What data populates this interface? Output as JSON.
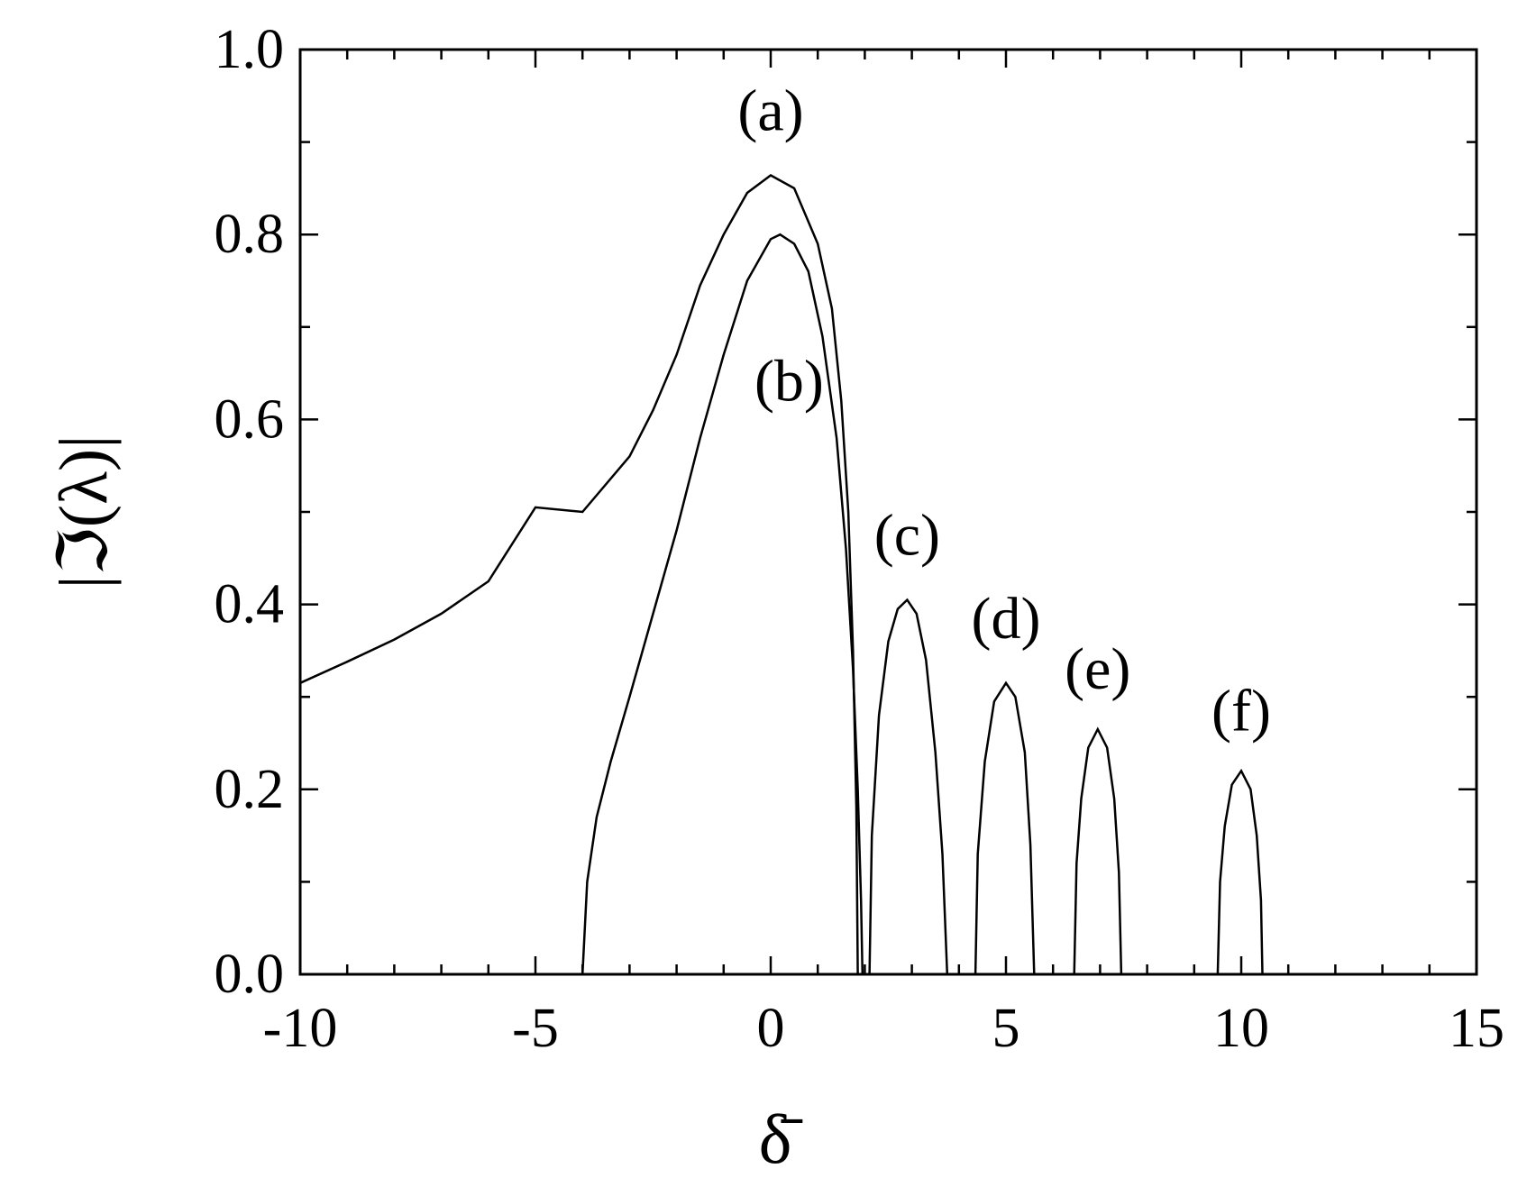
{
  "chart_data": {
    "type": "line",
    "xlabel": "δ̄",
    "ylabel": "|ℑ(λ)|",
    "xlim": [
      -10,
      15
    ],
    "ylim": [
      0,
      1
    ],
    "xticks": [
      -10,
      -5,
      0,
      5,
      10,
      15
    ],
    "yticks": [
      {
        "value": 0,
        "label": "0.0"
      },
      0.2,
      0.4,
      0.6,
      0.8,
      {
        "value": 1,
        "label": "1.0"
      }
    ],
    "series": [
      {
        "name": "(a)",
        "color": "#000000",
        "x": [
          -10,
          -9,
          -8,
          -7,
          -6,
          -5,
          -4,
          -3,
          -2.5,
          -2,
          -1.5,
          -1,
          -0.5,
          0,
          0.5,
          1,
          1.3,
          1.5,
          1.65,
          1.75,
          1.82,
          1.85
        ],
        "values": [
          0.315,
          0.338,
          0.362,
          0.39,
          0.425,
          0.505,
          0.5,
          0.56,
          0.61,
          0.67,
          0.745,
          0.8,
          0.845,
          0.864,
          0.85,
          0.79,
          0.72,
          0.62,
          0.5,
          0.35,
          0.18,
          0
        ]
      },
      {
        "name": "(b)",
        "color": "#000000",
        "x": [
          -4,
          -3.9,
          -3.7,
          -3.4,
          -3,
          -2.5,
          -2,
          -1.5,
          -1,
          -0.5,
          0,
          0.2,
          0.5,
          0.8,
          1.1,
          1.4,
          1.6,
          1.75,
          1.85,
          1.92,
          1.95
        ],
        "values": [
          0,
          0.1,
          0.17,
          0.23,
          0.3,
          0.39,
          0.48,
          0.58,
          0.67,
          0.75,
          0.795,
          0.8,
          0.79,
          0.76,
          0.69,
          0.58,
          0.46,
          0.33,
          0.2,
          0.08,
          0
        ]
      },
      {
        "name": "(c)",
        "color": "#000000",
        "x": [
          2.1,
          2.15,
          2.3,
          2.5,
          2.7,
          2.9,
          3.1,
          3.3,
          3.5,
          3.65,
          3.75
        ],
        "values": [
          0,
          0.15,
          0.28,
          0.36,
          0.395,
          0.405,
          0.39,
          0.34,
          0.24,
          0.13,
          0
        ]
      },
      {
        "name": "(d)",
        "color": "#000000",
        "x": [
          4.35,
          4.4,
          4.55,
          4.75,
          5.0,
          5.2,
          5.4,
          5.52,
          5.6
        ],
        "values": [
          0,
          0.13,
          0.23,
          0.295,
          0.315,
          0.3,
          0.24,
          0.14,
          0
        ]
      },
      {
        "name": "(e)",
        "color": "#000000",
        "x": [
          6.45,
          6.5,
          6.6,
          6.75,
          6.95,
          7.15,
          7.3,
          7.4,
          7.45
        ],
        "values": [
          0,
          0.12,
          0.19,
          0.245,
          0.265,
          0.245,
          0.19,
          0.11,
          0
        ]
      },
      {
        "name": "(f)",
        "color": "#000000",
        "x": [
          9.5,
          9.55,
          9.65,
          9.8,
          10.0,
          10.2,
          10.33,
          10.42,
          10.45
        ],
        "values": [
          0,
          0.1,
          0.16,
          0.205,
          0.22,
          0.2,
          0.15,
          0.08,
          0
        ]
      }
    ]
  }
}
